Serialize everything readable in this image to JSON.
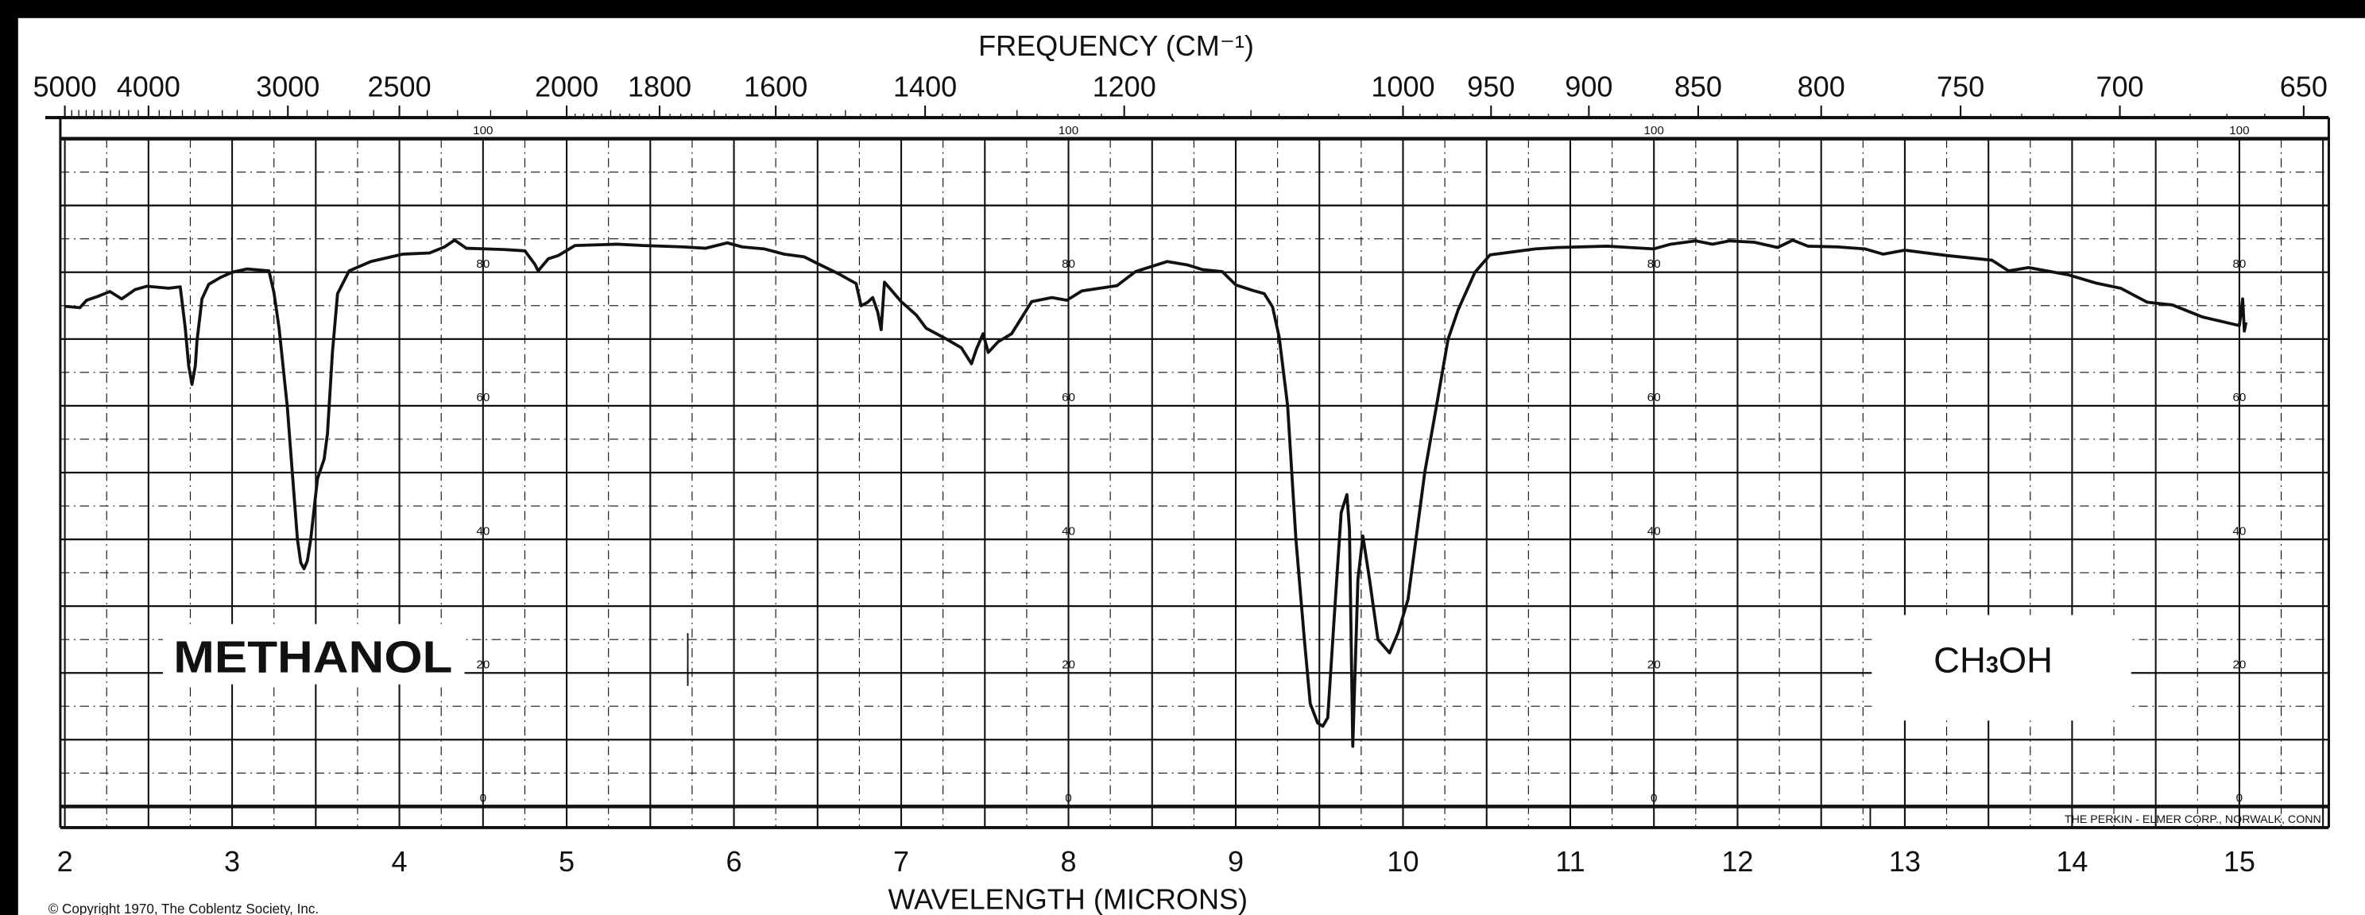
{
  "chart_data": {
    "type": "line",
    "top_axis_title": "FREQUENCY (CM⁻¹)",
    "xlabel": "WAVELENGTH (MICRONS)",
    "xlim": [
      2,
      15.5
    ],
    "ylim": [
      0,
      100
    ],
    "x_ticks": [
      "2",
      "3",
      "4",
      "5",
      "6",
      "7",
      "8",
      "9",
      "10",
      "11",
      "12",
      "13",
      "14",
      "15"
    ],
    "frequency_ticks": [
      "5000",
      "4000",
      "3000",
      "2500",
      "2000",
      "1800",
      "1600",
      "1400",
      "1200",
      "1000",
      "950",
      "900",
      "850",
      "800",
      "750",
      "700",
      "650"
    ],
    "y_ticks": [
      "100",
      "80",
      "60",
      "40",
      "20",
      "0"
    ],
    "y_tick_columns_microns": [
      4.5,
      8.0,
      11.5,
      15.0
    ],
    "grid": true,
    "line_color": "#111111",
    "sample_name": "METHANOL",
    "formula_parts": [
      "CH",
      "3",
      "OH"
    ],
    "maker": "THE PERKIN - ELMER CORP., NORWALK, CONN.",
    "copyright": "© Copyright 1970, The Coblentz Society, Inc.",
    "series": [
      {
        "points": [
          [
            2.0,
            74.9
          ],
          [
            2.09,
            74.7
          ],
          [
            2.13,
            75.8
          ],
          [
            2.2,
            76.4
          ],
          [
            2.27,
            77.1
          ],
          [
            2.34,
            76
          ],
          [
            2.42,
            77.4
          ],
          [
            2.49,
            77.9
          ],
          [
            2.62,
            77.6
          ],
          [
            2.69,
            77.8
          ],
          [
            2.72,
            71.7
          ],
          [
            2.74,
            66
          ],
          [
            2.76,
            63.2
          ],
          [
            2.78,
            66
          ],
          [
            2.79,
            69.7
          ],
          [
            2.82,
            76
          ],
          [
            2.86,
            78.2
          ],
          [
            2.93,
            79.2
          ],
          [
            3.0,
            80
          ],
          [
            3.09,
            80.5
          ],
          [
            3.22,
            80.2
          ],
          [
            3.25,
            77
          ],
          [
            3.28,
            71.7
          ],
          [
            3.33,
            59.8
          ],
          [
            3.36,
            50
          ],
          [
            3.39,
            40
          ],
          [
            3.41,
            36.5
          ],
          [
            3.43,
            35.6
          ],
          [
            3.45,
            36.8
          ],
          [
            3.47,
            40
          ],
          [
            3.51,
            49.1
          ],
          [
            3.55,
            52
          ],
          [
            3.57,
            55.8
          ],
          [
            3.6,
            68
          ],
          [
            3.63,
            76.8
          ],
          [
            3.7,
            80.2
          ],
          [
            3.83,
            81.6
          ],
          [
            4.02,
            82.7
          ],
          [
            4.18,
            82.9
          ],
          [
            4.27,
            83.8
          ],
          [
            4.33,
            84.8
          ],
          [
            4.4,
            83.6
          ],
          [
            4.62,
            83.4
          ],
          [
            4.75,
            83.2
          ],
          [
            4.81,
            81.2
          ],
          [
            4.83,
            80.2
          ],
          [
            4.89,
            82
          ],
          [
            4.95,
            82.5
          ],
          [
            5.05,
            84
          ],
          [
            5.3,
            84.2
          ],
          [
            5.46,
            84
          ],
          [
            5.7,
            83.8
          ],
          [
            5.83,
            83.6
          ],
          [
            5.96,
            84.4
          ],
          [
            6.05,
            83.8
          ],
          [
            6.18,
            83.5
          ],
          [
            6.3,
            82.7
          ],
          [
            6.42,
            82.3
          ],
          [
            6.5,
            81.3
          ],
          [
            6.63,
            79.7
          ],
          [
            6.73,
            78.3
          ],
          [
            6.76,
            75
          ],
          [
            6.8,
            75.5
          ],
          [
            6.83,
            76.2
          ],
          [
            6.86,
            74
          ],
          [
            6.88,
            71.4
          ],
          [
            6.9,
            78.5
          ],
          [
            7.0,
            75.6
          ],
          [
            7.09,
            73.6
          ],
          [
            7.15,
            71.6
          ],
          [
            7.27,
            70
          ],
          [
            7.36,
            68.7
          ],
          [
            7.42,
            66.3
          ],
          [
            7.45,
            68.5
          ],
          [
            7.49,
            70.8
          ],
          [
            7.52,
            68
          ],
          [
            7.58,
            69.6
          ],
          [
            7.66,
            70.8
          ],
          [
            7.78,
            75.6
          ],
          [
            7.9,
            76.2
          ],
          [
            7.99,
            75.8
          ],
          [
            8.08,
            77.2
          ],
          [
            8.29,
            78
          ],
          [
            8.4,
            80.1
          ],
          [
            8.59,
            81.6
          ],
          [
            8.71,
            81.1
          ],
          [
            8.8,
            80.4
          ],
          [
            8.92,
            80.1
          ],
          [
            9.0,
            78.1
          ],
          [
            9.1,
            77.3
          ],
          [
            9.17,
            76.8
          ],
          [
            9.22,
            74.8
          ],
          [
            9.26,
            70.3
          ],
          [
            9.31,
            60
          ],
          [
            9.36,
            40
          ],
          [
            9.41,
            25
          ],
          [
            9.445,
            15.4
          ],
          [
            9.49,
            12.5
          ],
          [
            9.52,
            12
          ],
          [
            9.55,
            13.3
          ],
          [
            9.59,
            28.7
          ],
          [
            9.63,
            44
          ],
          [
            9.665,
            46.7
          ],
          [
            9.68,
            41.5
          ],
          [
            9.7,
            9
          ],
          [
            9.73,
            34
          ],
          [
            9.76,
            40.5
          ],
          [
            9.8,
            34
          ],
          [
            9.85,
            25
          ],
          [
            9.92,
            23
          ],
          [
            9.97,
            26
          ],
          [
            10.03,
            31
          ],
          [
            10.13,
            50
          ],
          [
            10.2,
            60
          ],
          [
            10.27,
            70
          ],
          [
            10.33,
            74.4
          ],
          [
            10.43,
            80
          ],
          [
            10.52,
            82.6
          ],
          [
            10.79,
            83.5
          ],
          [
            10.92,
            83.7
          ],
          [
            11.22,
            83.9
          ],
          [
            11.5,
            83.5
          ],
          [
            11.6,
            84.2
          ],
          [
            11.75,
            84.7
          ],
          [
            11.85,
            84.2
          ],
          [
            11.95,
            84.7
          ],
          [
            12.1,
            84.5
          ],
          [
            12.24,
            83.7
          ],
          [
            12.33,
            84.8
          ],
          [
            12.42,
            83.9
          ],
          [
            12.6,
            83.8
          ],
          [
            12.76,
            83.5
          ],
          [
            12.87,
            82.7
          ],
          [
            13.0,
            83.3
          ],
          [
            13.25,
            82.5
          ],
          [
            13.52,
            81.8
          ],
          [
            13.62,
            80.2
          ],
          [
            13.74,
            80.7
          ],
          [
            13.98,
            79.6
          ],
          [
            14.14,
            78.4
          ],
          [
            14.29,
            77.6
          ],
          [
            14.45,
            75.5
          ],
          [
            14.6,
            75.1
          ],
          [
            14.78,
            73.3
          ],
          [
            15.0,
            72
          ],
          [
            15.02,
            76
          ],
          [
            15.03,
            71.2
          ],
          [
            15.04,
            72.5
          ]
        ]
      }
    ]
  }
}
